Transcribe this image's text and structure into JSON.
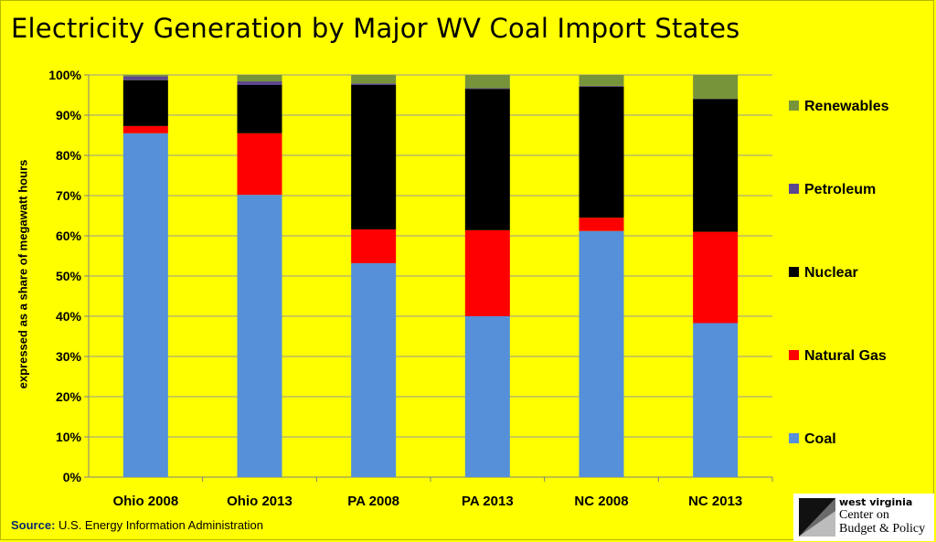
{
  "title": "Electricity Generation by Major WV Coal Import States",
  "source": {
    "label": "Source:",
    "text": "U.S. Energy Information Administration"
  },
  "logo": {
    "line1": "west virginia",
    "line2": "Center on",
    "line3": "Budget & Policy"
  },
  "colors": {
    "background": "#ffff00",
    "Coal": "#5590d9",
    "Natural Gas": "#ff0000",
    "Nuclear": "#000000",
    "Petroleum": "#5b4690",
    "Renewables": "#77943a"
  },
  "chart_data": {
    "type": "bar",
    "stacked": true,
    "title": "Electricity Generation by Major WV Coal Import States",
    "xlabel": "",
    "ylabel": "expressed as a share of megawatt hours",
    "ylim": [
      0,
      100
    ],
    "yticks": [
      "0%",
      "10%",
      "20%",
      "30%",
      "40%",
      "50%",
      "60%",
      "70%",
      "80%",
      "90%",
      "100%"
    ],
    "categories": [
      "Ohio 2008",
      "Ohio 2013",
      "PA 2008",
      "PA 2013",
      "NC 2008",
      "NC 2013"
    ],
    "series": [
      {
        "name": "Coal",
        "values": [
          85.5,
          70.2,
          53.2,
          40.0,
          61.2,
          38.3
        ]
      },
      {
        "name": "Natural Gas",
        "values": [
          1.8,
          15.3,
          8.4,
          21.4,
          3.3,
          22.7
        ]
      },
      {
        "name": "Nuclear",
        "values": [
          11.4,
          12.0,
          35.9,
          35.1,
          32.6,
          33.0
        ]
      },
      {
        "name": "Petroleum",
        "values": [
          1.0,
          0.9,
          0.4,
          0.2,
          0.2,
          0.1
        ]
      },
      {
        "name": "Renewables",
        "values": [
          0.3,
          1.6,
          2.1,
          3.3,
          2.7,
          5.9
        ]
      }
    ],
    "legend": {
      "placement": "right",
      "order": [
        "Renewables",
        "Petroleum",
        "Nuclear",
        "Natural Gas",
        "Coal"
      ]
    },
    "grid": true
  }
}
